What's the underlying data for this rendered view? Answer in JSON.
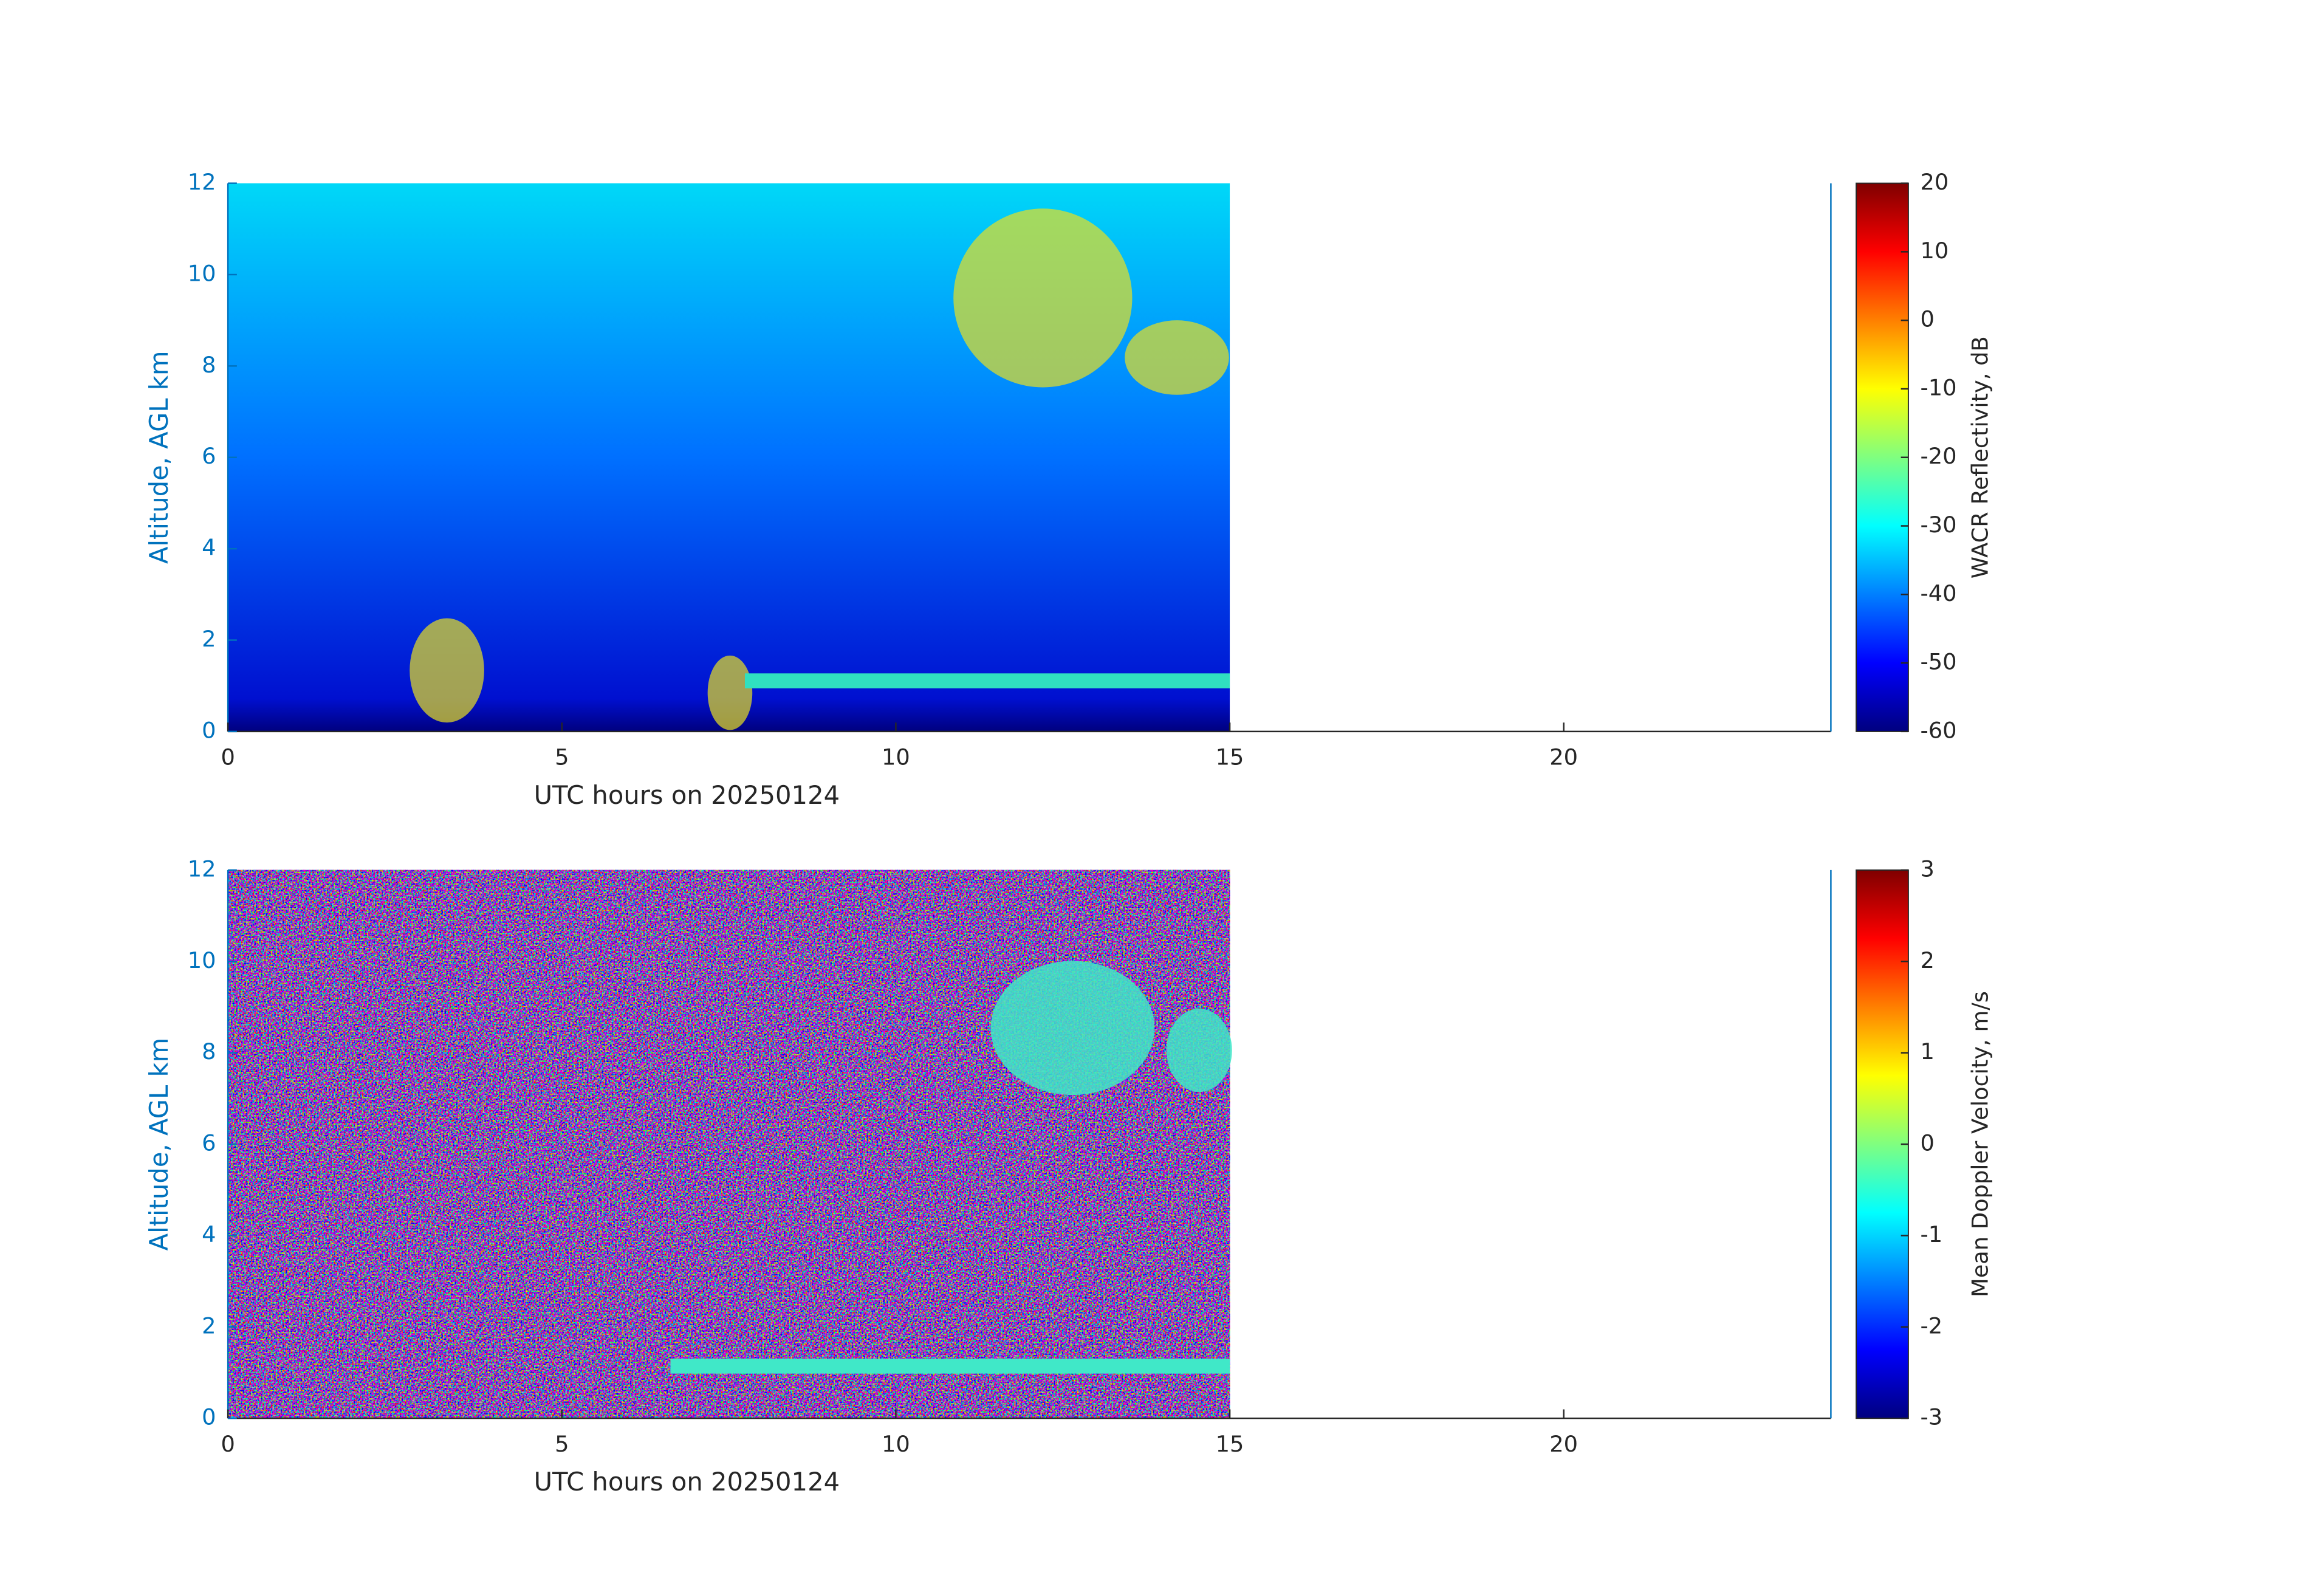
{
  "chart_data": [
    {
      "type": "heatmap",
      "xlabel": "UTC hours on 20250124",
      "ylabel": "Altitude, AGL km",
      "xlim": [
        0,
        24
      ],
      "xticks": [
        0,
        5,
        10,
        15,
        20
      ],
      "ylim": [
        0,
        12
      ],
      "yticks": [
        0,
        2,
        4,
        6,
        8,
        10,
        12
      ],
      "colorbar": {
        "label": "WACR Reflectivity, dB",
        "lim": [
          -60,
          20
        ],
        "ticks": [
          -60,
          -50,
          -40,
          -30,
          -20,
          -10,
          0,
          10,
          20
        ],
        "colormap": "jet"
      }
    },
    {
      "type": "heatmap",
      "xlabel": "UTC hours on 20250124",
      "ylabel": "Altitude, AGL km",
      "xlim": [
        0,
        24
      ],
      "xticks": [
        0,
        5,
        10,
        15,
        20
      ],
      "ylim": [
        0,
        12
      ],
      "yticks": [
        0,
        2,
        4,
        6,
        8,
        10,
        12
      ],
      "colorbar": {
        "label": "Mean Doppler Velocity, m/s",
        "lim": [
          -3,
          3
        ],
        "ticks": [
          -3,
          -2,
          -1,
          0,
          1,
          2,
          3
        ],
        "colormap": "jet"
      }
    }
  ]
}
